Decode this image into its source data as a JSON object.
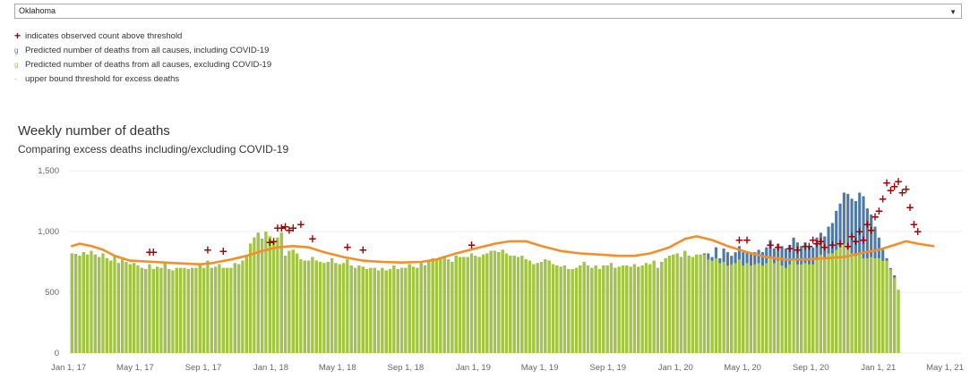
{
  "filter": {
    "selected": "Oklahoma",
    "icon": "chevron-down-icon"
  },
  "legend": {
    "items": [
      {
        "symbol": "+",
        "label": "indicates observed count above threshold",
        "color": "#a00000"
      },
      {
        "symbol": "g",
        "label": "Predicted number of deaths from all causes, including COVID-19",
        "color": "#4e79a7"
      },
      {
        "symbol": "g",
        "label": "Predicted number of deaths from all causes, excluding COVID-19",
        "color": "#a4c639"
      },
      {
        "symbol": "-",
        "label": "upper bound threshold for excess deaths",
        "color": "#f28e2b"
      }
    ]
  },
  "chart_data": {
    "type": "bar",
    "title": "Weekly number of deaths",
    "subtitle": "Comparing excess deaths including/excluding COVID-19",
    "xlabel": "",
    "ylabel": "",
    "ylim": [
      0,
      1500
    ],
    "yticks": [
      0,
      500,
      1000,
      1500
    ],
    "ytick_labels": [
      "0",
      "500",
      "1,000",
      "1,500"
    ],
    "xlim": [
      "2016-12-31",
      "2021-05-01"
    ],
    "xticks": [
      "2017-01-01",
      "2017-05-01",
      "2017-09-01",
      "2018-01-01",
      "2018-05-01",
      "2018-09-01",
      "2019-01-01",
      "2019-05-01",
      "2019-09-01",
      "2020-01-01",
      "2020-05-01",
      "2020-09-01",
      "2021-01-01",
      "2021-05-01"
    ],
    "xtick_labels": [
      "Jan 1, 17",
      "May 1, 17",
      "Sep 1, 17",
      "Jan 1, 18",
      "May 1, 18",
      "Sep 1, 18",
      "Jan 1, 19",
      "May 1, 19",
      "Sep 1, 19",
      "Jan 1, 20",
      "May 1, 20",
      "Sep 1, 20",
      "Jan 1, 21",
      "May 1, 21"
    ],
    "grid": true,
    "colors": {
      "including": "#4e79a7",
      "excluding": "#a4c639",
      "threshold": "#f28e2b",
      "marker": "#a00000"
    },
    "series": [
      {
        "name": "Predicted number of deaths from all causes, including COVID-19",
        "x0": "2017-01-07",
        "step_days": 7,
        "values": [
          820,
          815,
          800,
          830,
          810,
          840,
          810,
          790,
          820,
          780,
          760,
          800,
          740,
          770,
          750,
          730,
          740,
          720,
          700,
          690,
          730,
          690,
          710,
          700,
          740,
          690,
          680,
          700,
          700,
          700,
          690,
          700,
          700,
          720,
          700,
          760,
          700,
          710,
          730,
          700,
          700,
          700,
          740,
          730,
          760,
          790,
          900,
          950,
          990,
          940,
          1000,
          960,
          910,
          950,
          990,
          800,
          840,
          850,
          820,
          770,
          760,
          760,
          790,
          760,
          750,
          740,
          750,
          780,
          740,
          730,
          740,
          770,
          720,
          700,
          720,
          710,
          690,
          700,
          700,
          680,
          700,
          680,
          690,
          720,
          690,
          700,
          700,
          730,
          710,
          700,
          740,
          720,
          760,
          780,
          770,
          790,
          800,
          770,
          750,
          800,
          790,
          790,
          790,
          820,
          800,
          790,
          810,
          820,
          840,
          840,
          830,
          850,
          820,
          800,
          800,
          790,
          800,
          770,
          760,
          730,
          740,
          750,
          770,
          760,
          730,
          720,
          710,
          720,
          690,
          690,
          700,
          720,
          750,
          720,
          700,
          720,
          690,
          720,
          720,
          740,
          700,
          710,
          720,
          720,
          710,
          730,
          710,
          720,
          740,
          730,
          760,
          700,
          750,
          780,
          800,
          810,
          820,
          790,
          840,
          800,
          790,
          810,
          810,
          820,
          820,
          790,
          870,
          780,
          860,
          830,
          800,
          830,
          880,
          830,
          830,
          820,
          830,
          850,
          830,
          870,
          930,
          860,
          900,
          880,
          860,
          890,
          950,
          910,
          880,
          910,
          880,
          870,
          950,
          990,
          960,
          1040,
          1070,
          1170,
          1230,
          1320,
          1310,
          1270,
          1250,
          1320,
          1290,
          1190,
          1140,
          1040,
          950,
          850,
          780,
          700,
          640,
          520
        ]
      },
      {
        "name": "Predicted number of deaths from all causes, excluding COVID-19",
        "x0": "2017-01-07",
        "step_days": 7,
        "values": [
          820,
          815,
          800,
          830,
          810,
          840,
          810,
          790,
          820,
          780,
          760,
          800,
          740,
          770,
          750,
          730,
          740,
          720,
          700,
          690,
          730,
          690,
          710,
          700,
          740,
          690,
          680,
          700,
          700,
          700,
          690,
          700,
          700,
          720,
          700,
          760,
          700,
          710,
          730,
          700,
          700,
          700,
          740,
          730,
          760,
          790,
          900,
          950,
          990,
          940,
          1000,
          960,
          910,
          950,
          990,
          800,
          840,
          850,
          820,
          770,
          760,
          760,
          790,
          760,
          750,
          740,
          750,
          780,
          740,
          730,
          740,
          770,
          720,
          700,
          720,
          710,
          690,
          700,
          700,
          680,
          700,
          680,
          690,
          720,
          690,
          700,
          700,
          730,
          710,
          700,
          740,
          720,
          760,
          780,
          770,
          790,
          800,
          770,
          750,
          800,
          790,
          790,
          790,
          820,
          800,
          790,
          810,
          820,
          840,
          840,
          830,
          850,
          820,
          800,
          800,
          790,
          800,
          770,
          760,
          730,
          740,
          750,
          770,
          760,
          730,
          720,
          710,
          720,
          690,
          690,
          700,
          720,
          750,
          720,
          700,
          720,
          690,
          720,
          720,
          740,
          700,
          710,
          720,
          720,
          710,
          730,
          710,
          720,
          740,
          730,
          760,
          700,
          750,
          780,
          800,
          810,
          820,
          790,
          840,
          800,
          790,
          810,
          810,
          810,
          770,
          760,
          780,
          740,
          750,
          720,
          730,
          740,
          770,
          720,
          740,
          720,
          730,
          740,
          720,
          740,
          780,
          740,
          760,
          720,
          700,
          730,
          770,
          730,
          730,
          740,
          730,
          730,
          780,
          810,
          780,
          820,
          820,
          850,
          870,
          900,
          860,
          820,
          800,
          810,
          780,
          780,
          790,
          780,
          780,
          760,
          760,
          690,
          620,
          520
        ]
      }
    ],
    "threshold": {
      "name": "upper bound threshold for excess deaths",
      "points": [
        [
          "2017-01-07",
          880
        ],
        [
          "2017-01-21",
          900
        ],
        [
          "2017-02-11",
          880
        ],
        [
          "2017-03-04",
          850
        ],
        [
          "2017-03-25",
          800
        ],
        [
          "2017-04-22",
          760
        ],
        [
          "2017-06-03",
          750
        ],
        [
          "2017-07-15",
          740
        ],
        [
          "2017-08-26",
          730
        ],
        [
          "2017-09-16",
          740
        ],
        [
          "2017-10-21",
          770
        ],
        [
          "2017-11-18",
          800
        ],
        [
          "2017-12-16",
          840
        ],
        [
          "2018-01-13",
          870
        ],
        [
          "2018-02-10",
          880
        ],
        [
          "2018-03-10",
          870
        ],
        [
          "2018-04-07",
          830
        ],
        [
          "2018-05-12",
          790
        ],
        [
          "2018-06-16",
          760
        ],
        [
          "2018-07-21",
          750
        ],
        [
          "2018-08-25",
          745
        ],
        [
          "2018-09-29",
          750
        ],
        [
          "2018-10-27",
          770
        ],
        [
          "2018-12-01",
          820
        ],
        [
          "2019-01-05",
          860
        ],
        [
          "2019-02-09",
          900
        ],
        [
          "2019-03-09",
          920
        ],
        [
          "2019-04-06",
          920
        ],
        [
          "2019-05-04",
          880
        ],
        [
          "2019-06-08",
          840
        ],
        [
          "2019-07-13",
          820
        ],
        [
          "2019-08-17",
          810
        ],
        [
          "2019-09-21",
          800
        ],
        [
          "2019-10-19",
          800
        ],
        [
          "2019-11-16",
          820
        ],
        [
          "2019-12-21",
          870
        ],
        [
          "2020-01-18",
          940
        ],
        [
          "2020-02-08",
          960
        ],
        [
          "2020-03-07",
          930
        ],
        [
          "2020-04-04",
          880
        ],
        [
          "2020-05-09",
          830
        ],
        [
          "2020-06-13",
          790
        ],
        [
          "2020-07-18",
          770
        ],
        [
          "2020-08-22",
          770
        ],
        [
          "2020-09-26",
          780
        ],
        [
          "2020-10-31",
          790
        ],
        [
          "2020-11-28",
          820
        ],
        [
          "2021-01-02",
          850
        ],
        [
          "2021-01-30",
          890
        ],
        [
          "2021-02-20",
          920
        ],
        [
          "2021-03-13",
          900
        ],
        [
          "2021-04-10",
          880
        ]
      ]
    },
    "markers": {
      "name": "indicates observed count above threshold",
      "points": [
        [
          "2017-05-27",
          830
        ],
        [
          "2017-06-03",
          830
        ],
        [
          "2017-09-09",
          850
        ],
        [
          "2017-10-07",
          840
        ],
        [
          "2017-12-30",
          910
        ],
        [
          "2018-01-06",
          920
        ],
        [
          "2018-01-13",
          1030
        ],
        [
          "2018-01-20",
          1030
        ],
        [
          "2018-01-27",
          1040
        ],
        [
          "2018-02-03",
          1010
        ],
        [
          "2018-02-10",
          1030
        ],
        [
          "2018-02-24",
          1060
        ],
        [
          "2018-03-17",
          940
        ],
        [
          "2018-05-19",
          870
        ],
        [
          "2018-06-16",
          850
        ],
        [
          "2018-12-29",
          890
        ],
        [
          "2020-04-25",
          930
        ],
        [
          "2020-05-09",
          930
        ],
        [
          "2020-06-20",
          890
        ],
        [
          "2020-07-04",
          870
        ],
        [
          "2020-07-25",
          860
        ],
        [
          "2020-08-08",
          850
        ],
        [
          "2020-08-22",
          880
        ],
        [
          "2020-08-29",
          880
        ],
        [
          "2020-09-05",
          930
        ],
        [
          "2020-09-12",
          900
        ],
        [
          "2020-09-19",
          920
        ],
        [
          "2020-09-26",
          870
        ],
        [
          "2020-10-10",
          890
        ],
        [
          "2020-10-24",
          900
        ],
        [
          "2020-11-07",
          880
        ],
        [
          "2020-11-14",
          960
        ],
        [
          "2020-11-21",
          920
        ],
        [
          "2020-11-28",
          1000
        ],
        [
          "2020-12-05",
          930
        ],
        [
          "2020-12-12",
          1060
        ],
        [
          "2020-12-19",
          1010
        ],
        [
          "2020-12-26",
          1120
        ],
        [
          "2021-01-02",
          1170
        ],
        [
          "2021-01-09",
          1270
        ],
        [
          "2021-01-16",
          1400
        ],
        [
          "2021-01-23",
          1340
        ],
        [
          "2021-01-30",
          1370
        ],
        [
          "2021-02-06",
          1410
        ],
        [
          "2021-02-13",
          1320
        ],
        [
          "2021-02-20",
          1350
        ],
        [
          "2021-02-27",
          1200
        ],
        [
          "2021-03-06",
          1060
        ],
        [
          "2021-03-13",
          1000
        ]
      ]
    }
  }
}
